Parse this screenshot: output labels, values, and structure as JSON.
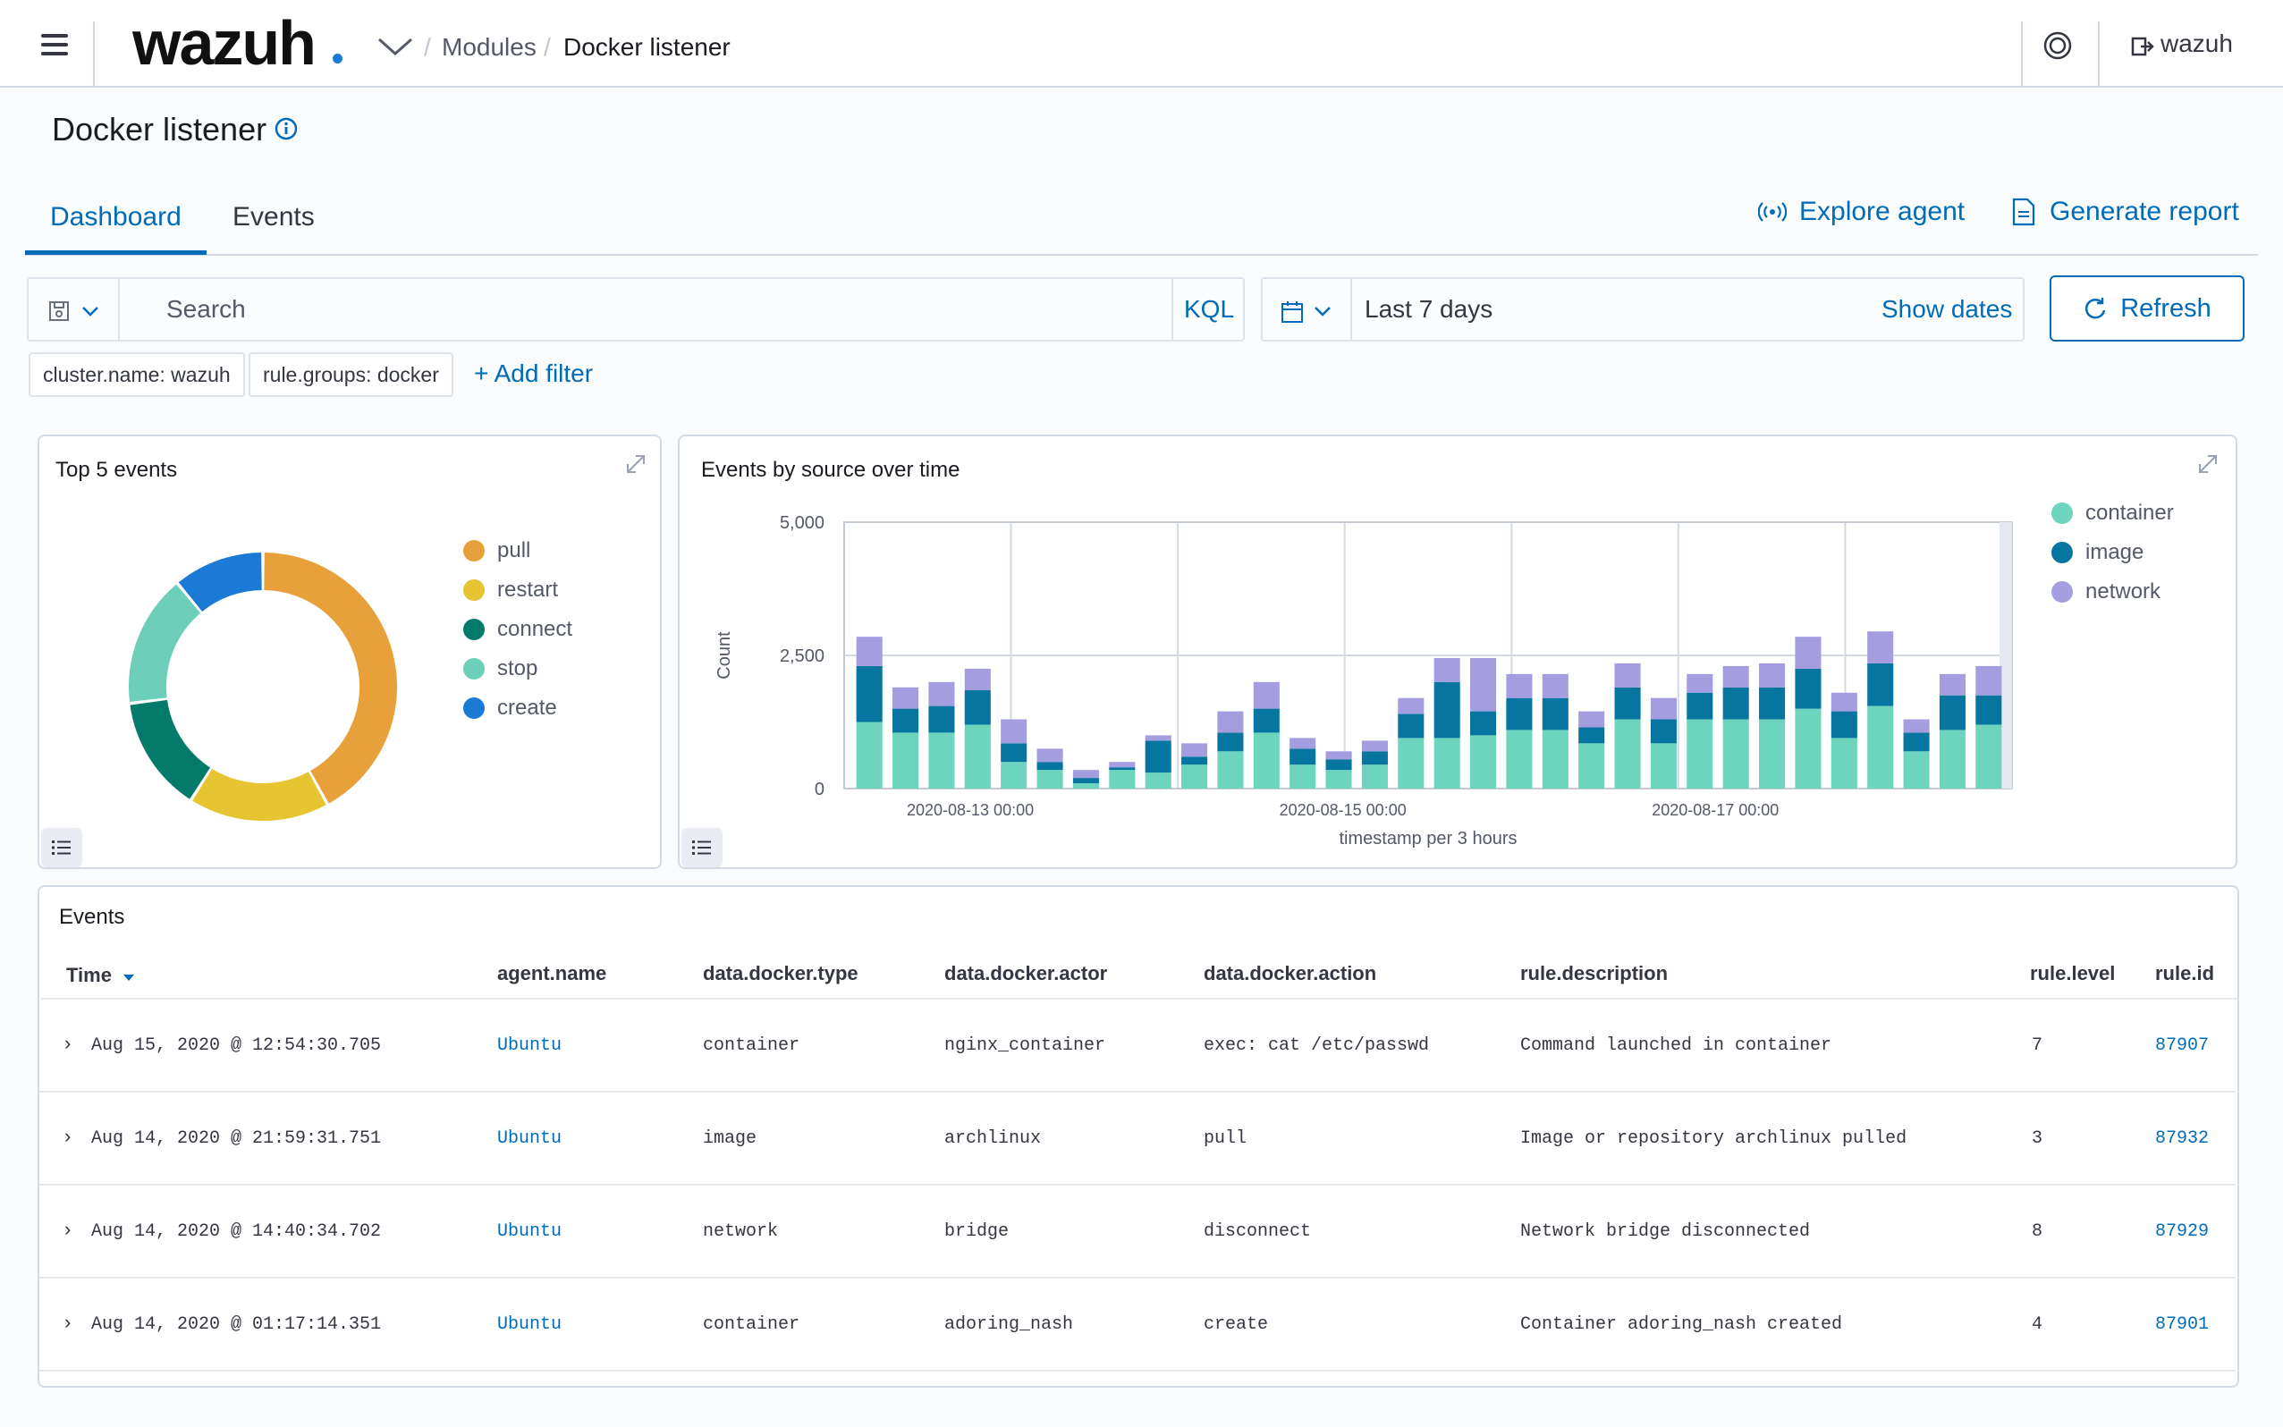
{
  "header": {
    "logo": "wazuh",
    "breadcrumb": {
      "modules": "Modules",
      "separator": "/",
      "current": "Docker listener"
    },
    "user": "wazuh"
  },
  "page": {
    "title": "Docker listener",
    "tabs": [
      {
        "label": "Dashboard",
        "active": true
      },
      {
        "label": "Events",
        "active": false
      }
    ],
    "actions": {
      "explore_agent": "Explore agent",
      "generate_report": "Generate report"
    }
  },
  "query": {
    "search_placeholder": "Search",
    "language": "KQL",
    "date_range": "Last 7 days",
    "show_dates": "Show dates",
    "refresh": "Refresh",
    "filters": [
      "cluster.name: wazuh",
      "rule.groups: docker"
    ],
    "add_filter": "+ Add filter"
  },
  "colors": {
    "accent": "#006bb8",
    "pull": "#e8a13a",
    "restart": "#e7c431",
    "connect": "#047a6a",
    "stop": "#6dcfb9",
    "create": "#1b7ad6",
    "container": "#6dd5bd",
    "image": "#0676a0",
    "network": "#a49ee0"
  },
  "panels": {
    "top5_title": "Top 5 events",
    "time_title": "Events by source over time",
    "events_title": "Events"
  },
  "chart_data": [
    {
      "type": "pie",
      "title": "Top 5 events",
      "categories": [
        "pull",
        "restart",
        "connect",
        "stop",
        "create"
      ],
      "values": [
        42,
        17,
        14,
        16,
        11
      ]
    },
    {
      "type": "bar",
      "title": "Events by source over time",
      "xlabel": "timestamp per 3 hours",
      "ylabel": "Count",
      "ylim": [
        0,
        5000
      ],
      "yticks": [
        "0",
        "2,500",
        "5,000"
      ],
      "xticks": [
        "2020-08-13 00:00",
        "2020-08-15 00:00",
        "2020-08-17 00:00"
      ],
      "stacked": true,
      "legend": "right",
      "series": [
        {
          "name": "container",
          "values": [
            1250,
            1050,
            1050,
            1200,
            500,
            350,
            100,
            350,
            300,
            450,
            700,
            1050,
            450,
            350,
            450,
            950,
            950,
            1000,
            1100,
            1100,
            850,
            1300,
            850,
            1300,
            1300,
            1300,
            1500,
            950,
            1550,
            700,
            1100,
            1200
          ]
        },
        {
          "name": "image",
          "values": [
            1050,
            450,
            500,
            650,
            350,
            150,
            100,
            50,
            600,
            150,
            350,
            450,
            300,
            200,
            250,
            450,
            1050,
            450,
            600,
            600,
            300,
            600,
            450,
            500,
            600,
            600,
            750,
            500,
            800,
            350,
            650,
            550
          ]
        },
        {
          "name": "network",
          "values": [
            550,
            400,
            450,
            400,
            450,
            250,
            150,
            100,
            100,
            250,
            400,
            500,
            200,
            150,
            200,
            300,
            450,
            1000,
            450,
            450,
            300,
            450,
            400,
            350,
            400,
            450,
            600,
            350,
            600,
            250,
            400,
            550
          ]
        }
      ]
    }
  ],
  "events_table": {
    "columns": [
      "Time",
      "agent.name",
      "data.docker.type",
      "data.docker.actor",
      "data.docker.action",
      "rule.description",
      "rule.level",
      "rule.id"
    ],
    "rows": [
      [
        "Aug 15, 2020 @ 12:54:30.705",
        "Ubuntu",
        "container",
        "nginx_container",
        "exec: cat /etc/passwd",
        "Command launched in container",
        "7",
        "87907"
      ],
      [
        "Aug 14, 2020 @ 21:59:31.751",
        "Ubuntu",
        "image",
        "archlinux",
        "pull",
        "Image or repository archlinux pulled",
        "3",
        "87932"
      ],
      [
        "Aug 14, 2020 @ 14:40:34.702",
        "Ubuntu",
        "network",
        "bridge",
        "disconnect",
        "Network bridge disconnected",
        "8",
        "87929"
      ],
      [
        "Aug 14, 2020 @ 01:17:14.351",
        "Ubuntu",
        "container",
        "adoring_nash",
        "create",
        "Container adoring_nash created",
        "4",
        "87901"
      ]
    ]
  }
}
